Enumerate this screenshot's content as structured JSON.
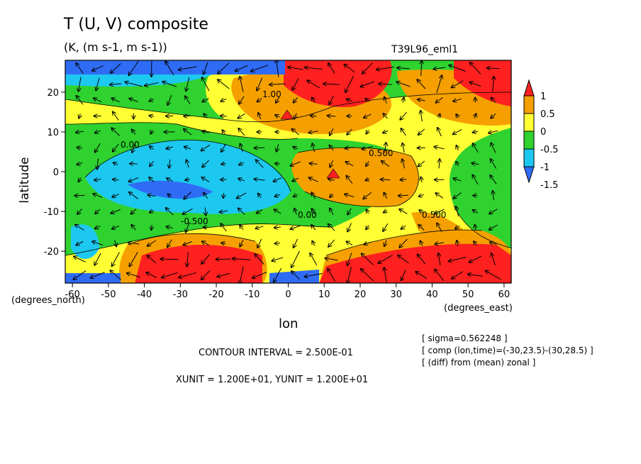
{
  "header": {
    "title": "T (U, V) composite",
    "units": "(K, (m s-1, m s-1))",
    "model": "T39L96_eml1"
  },
  "axes": {
    "ylabel": "latitude",
    "xlabel": "lon",
    "x_unit_note": "(degrees_north)",
    "y_unit_note": "(degrees_east)"
  },
  "footer": {
    "contour_interval": "CONTOUR INTERVAL = 2.500E-01",
    "xyunit": "XUNIT = 1.200E+01, YUNIT = 1.200E+01",
    "info": [
      "[ sigma=0.562248 ]",
      "[ comp (lon,time)=(-30,23.5)-(30,28.5) ]",
      "[ (diff) from (mean) zonal ]"
    ]
  },
  "chart_data": {
    "type": "heatmap",
    "title": "T (U, V) composite",
    "xlabel": "lon",
    "ylabel": "latitude",
    "xlim": [
      -62,
      62
    ],
    "ylim": [
      -28,
      28
    ],
    "xticks": [
      -60,
      -50,
      -40,
      -30,
      -20,
      -10,
      0,
      10,
      20,
      30,
      40,
      50,
      60
    ],
    "yticks": [
      -20,
      -10,
      0,
      10,
      20
    ],
    "colorbar": {
      "levels": [
        -1.5,
        -1,
        -0.5,
        0,
        0.5,
        1
      ],
      "colors": [
        "#2f6cf5",
        "#1dc8f0",
        "#2fd22f",
        "#ffff33",
        "#f5a000",
        "#ff2020"
      ]
    },
    "contour_labels": [
      "1.00",
      "0.500",
      "0.00",
      "-0.500"
    ],
    "features": [
      {
        "name": "warm anomaly north",
        "lon": -5,
        "lat": 18,
        "value": 1.0
      },
      {
        "name": "warm anomaly south-west",
        "lon": -25,
        "lat": -22,
        "value": 1.0
      },
      {
        "name": "warm anomaly south-east",
        "lon": 35,
        "lat": -22,
        "value": 1.0
      },
      {
        "name": "warm anomaly equator",
        "lon": 10,
        "lat": 0,
        "value": 0.5
      },
      {
        "name": "cold anomaly west",
        "lon": -40,
        "lat": -3,
        "value": -1.0
      }
    ]
  }
}
